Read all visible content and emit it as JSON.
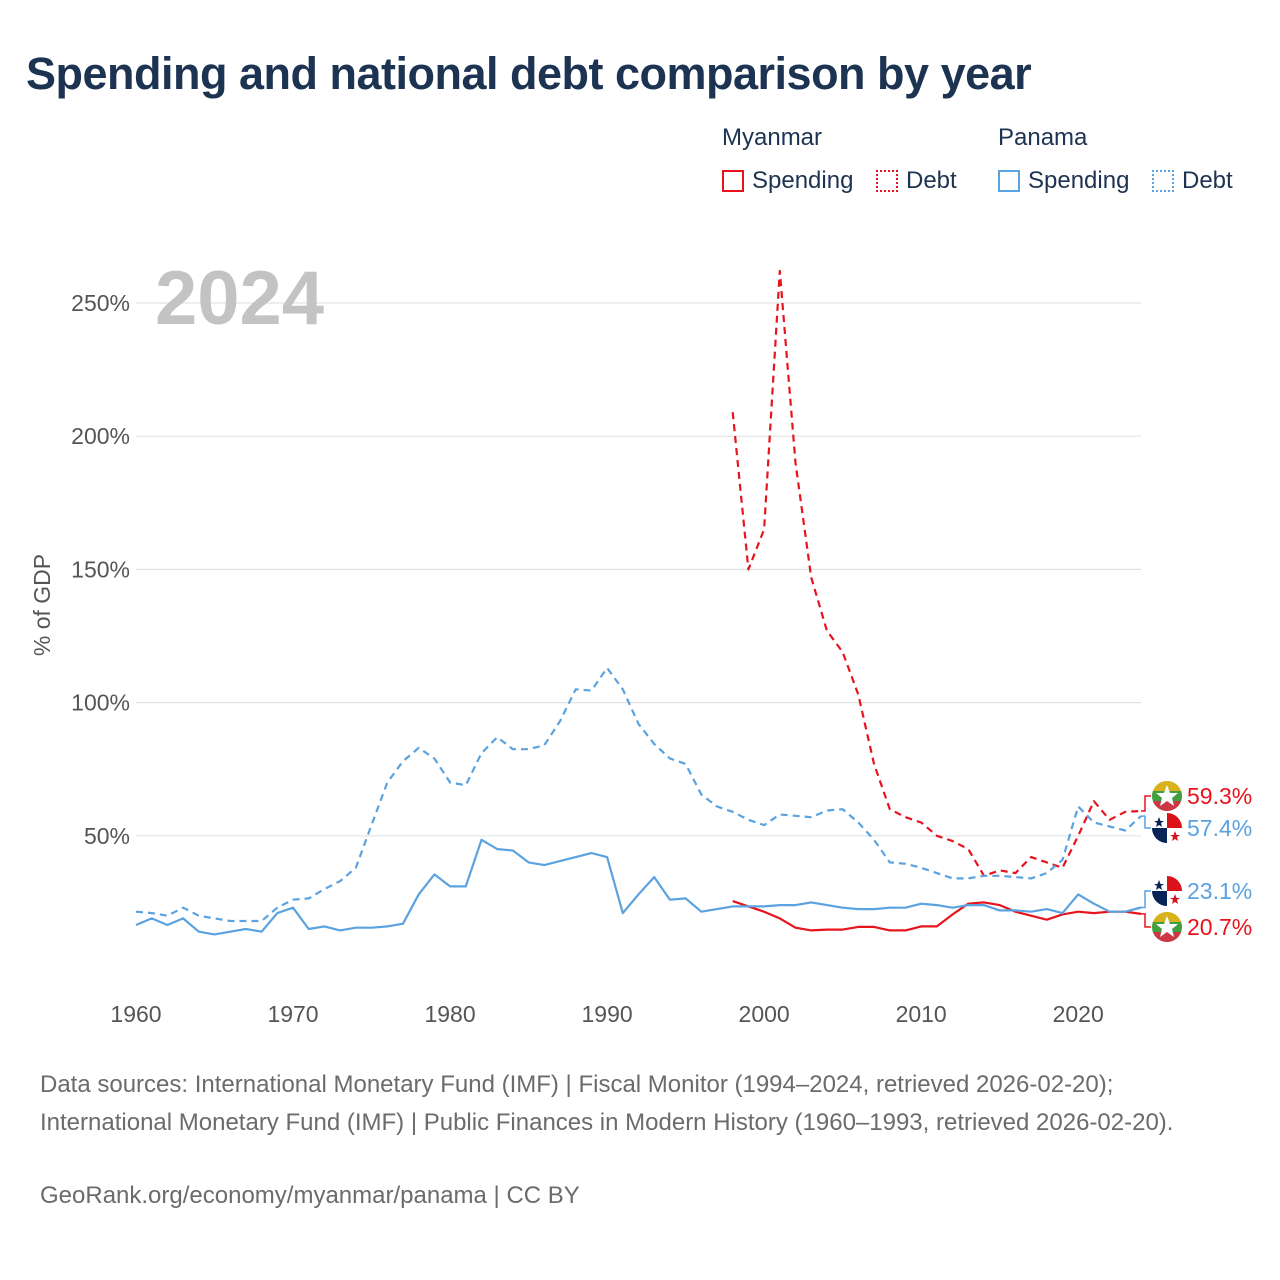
{
  "title": "Spending and national debt comparison by year",
  "year_label": "2024",
  "legend": {
    "myanmar": {
      "name": "Myanmar",
      "spending": "Spending",
      "debt": "Debt"
    },
    "panama": {
      "name": "Panama",
      "spending": "Spending",
      "debt": "Debt"
    }
  },
  "colors": {
    "myanmar": "#e8131c",
    "panama": "#5aa2e0",
    "grid": "#e3e3e3",
    "axis_text": "#555555",
    "year_text": "#c3c3c3"
  },
  "chart_data": {
    "type": "line",
    "title": "Spending and national debt comparison by year",
    "xlabel": "",
    "ylabel": "% of GDP",
    "xlim": [
      1960,
      2024
    ],
    "ylim": [
      0,
      260
    ],
    "x_ticks": [
      1960,
      1970,
      1980,
      1990,
      2000,
      2010,
      2020
    ],
    "y_ticks": [
      50,
      100,
      150,
      200,
      250
    ],
    "y_tick_labels": [
      "50%",
      "100%",
      "150%",
      "200%",
      "250%"
    ],
    "end_labels": [
      {
        "country": "Myanmar",
        "metric": "Debt",
        "value": 59.3,
        "text": "59.3%"
      },
      {
        "country": "Panama",
        "metric": "Debt",
        "value": 57.4,
        "text": "57.4%"
      },
      {
        "country": "Panama",
        "metric": "Spending",
        "value": 23.1,
        "text": "23.1%"
      },
      {
        "country": "Myanmar",
        "metric": "Spending",
        "value": 20.7,
        "text": "20.7%"
      }
    ],
    "series": [
      {
        "name": "Myanmar Debt",
        "country": "myanmar",
        "dashed": true,
        "x": [
          1998,
          1999,
          2000,
          2001,
          2002,
          2003,
          2004,
          2005,
          2006,
          2007,
          2008,
          2009,
          2010,
          2011,
          2012,
          2013,
          2014,
          2015,
          2016,
          2017,
          2018,
          2019,
          2020,
          2021,
          2022,
          2023,
          2024
        ],
        "values": [
          209,
          150,
          165,
          262,
          190,
          147,
          127,
          119,
          103,
          77,
          60,
          57,
          55,
          50,
          48,
          45,
          35,
          37,
          36,
          42,
          40,
          38,
          50,
          63,
          56,
          59,
          59.3
        ]
      },
      {
        "name": "Myanmar Spending",
        "country": "myanmar",
        "dashed": false,
        "x": [
          1998,
          1999,
          2000,
          2001,
          2002,
          2003,
          2004,
          2005,
          2006,
          2007,
          2008,
          2009,
          2010,
          2011,
          2012,
          2013,
          2014,
          2015,
          2016,
          2017,
          2018,
          2019,
          2020,
          2021,
          2022,
          2023,
          2024
        ],
        "values": [
          25.5,
          23.5,
          21.5,
          19,
          15.5,
          14.5,
          14.8,
          14.8,
          15.8,
          15.8,
          14.5,
          14.5,
          16,
          16,
          20.5,
          24.5,
          25,
          24,
          21.5,
          20,
          18.5,
          20.5,
          21.5,
          21,
          21.5,
          21.5,
          20.7
        ]
      },
      {
        "name": "Panama Debt",
        "country": "panama",
        "dashed": true,
        "x": [
          1960,
          1961,
          1962,
          1963,
          1964,
          1965,
          1966,
          1967,
          1968,
          1969,
          1970,
          1971,
          1972,
          1973,
          1974,
          1975,
          1976,
          1977,
          1978,
          1979,
          1980,
          1981,
          1982,
          1983,
          1984,
          1985,
          1986,
          1987,
          1988,
          1989,
          1990,
          1991,
          1992,
          1993,
          1994,
          1995,
          1996,
          1997,
          1998,
          1999,
          2000,
          2001,
          2002,
          2003,
          2004,
          2005,
          2006,
          2007,
          2008,
          2009,
          2010,
          2011,
          2012,
          2013,
          2014,
          2015,
          2016,
          2017,
          2018,
          2019,
          2020,
          2021,
          2022,
          2023,
          2024
        ],
        "values": [
          21.5,
          21,
          20,
          23,
          20,
          19,
          18,
          18,
          18,
          23,
          26,
          26.5,
          30,
          33,
          38,
          54,
          70,
          78,
          83,
          79,
          70,
          69,
          81,
          87,
          82.5,
          82.5,
          84,
          93,
          105,
          104.5,
          113,
          105,
          92,
          84.5,
          79,
          77,
          65.5,
          61,
          59,
          56,
          54,
          58,
          57.5,
          57,
          59.5,
          60,
          55,
          48.5,
          40,
          39.5,
          38,
          36,
          34,
          34,
          35,
          35,
          34.5,
          34,
          36,
          41,
          61,
          55,
          53.5,
          52,
          57.4
        ]
      },
      {
        "name": "Panama Spending",
        "country": "panama",
        "dashed": false,
        "x": [
          1960,
          1961,
          1962,
          1963,
          1964,
          1965,
          1966,
          1967,
          1968,
          1969,
          1970,
          1971,
          1972,
          1973,
          1974,
          1975,
          1976,
          1977,
          1978,
          1979,
          1980,
          1981,
          1982,
          1983,
          1984,
          1985,
          1986,
          1987,
          1988,
          1989,
          1990,
          1991,
          1992,
          1993,
          1994,
          1995,
          1996,
          1997,
          1998,
          1999,
          2000,
          2001,
          2002,
          2003,
          2004,
          2005,
          2006,
          2007,
          2008,
          2009,
          2010,
          2011,
          2012,
          2013,
          2014,
          2015,
          2016,
          2017,
          2018,
          2019,
          2020,
          2021,
          2022,
          2023,
          2024
        ],
        "values": [
          16.5,
          19,
          16.5,
          19,
          14,
          13,
          14,
          15,
          14,
          21,
          23,
          15,
          16,
          14.5,
          15.5,
          15.5,
          16,
          17,
          28,
          35.5,
          31,
          31,
          48.5,
          45,
          44.5,
          40,
          39,
          40.5,
          42,
          43.5,
          42,
          21,
          28,
          34.5,
          26,
          26.5,
          21.5,
          22.5,
          23.5,
          23.5,
          23.5,
          24,
          24,
          25,
          24,
          23,
          22.5,
          22.5,
          23,
          23,
          24.5,
          24,
          23,
          24,
          24,
          22,
          22,
          21.5,
          22.5,
          21,
          28,
          24.5,
          21.5,
          21.5,
          23.1
        ]
      }
    ]
  },
  "sources_text": "Data sources: International Monetary Fund (IMF) | Fiscal Monitor (1994–2024, retrieved 2026-02-20); International Monetary Fund (IMF) | Public Finances in Modern History (1960–1993, retrieved 2026-02-20).",
  "footer_text": "GeoRank.org/economy/myanmar/panama | CC BY"
}
